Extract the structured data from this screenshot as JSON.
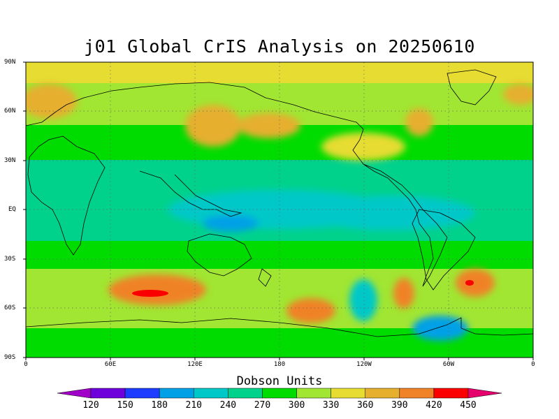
{
  "title": "j01 Global CrIS Analysis on 20250610",
  "colorbar": {
    "title": "Dobson Units",
    "labels": [
      "120",
      "150",
      "180",
      "210",
      "240",
      "270",
      "300",
      "330",
      "360",
      "390",
      "420",
      "450"
    ],
    "colors": [
      "#a000c8",
      "#6e00dc",
      "#1e3cff",
      "#00a0e6",
      "#00c8c8",
      "#00d28c",
      "#00dc00",
      "#a0e632",
      "#e6dc32",
      "#e6af2d",
      "#f08228",
      "#fa0000",
      "#e6006e"
    ]
  },
  "map": {
    "projection": "cylindrical-equidistant",
    "lat_labels": [
      "90N",
      "60N",
      "30N",
      "EQ",
      "30S",
      "60S",
      "90S"
    ],
    "lon_labels": [
      "0",
      "60E",
      "120E",
      "180",
      "120W",
      "60W",
      "0"
    ],
    "grid": "dotted"
  }
}
